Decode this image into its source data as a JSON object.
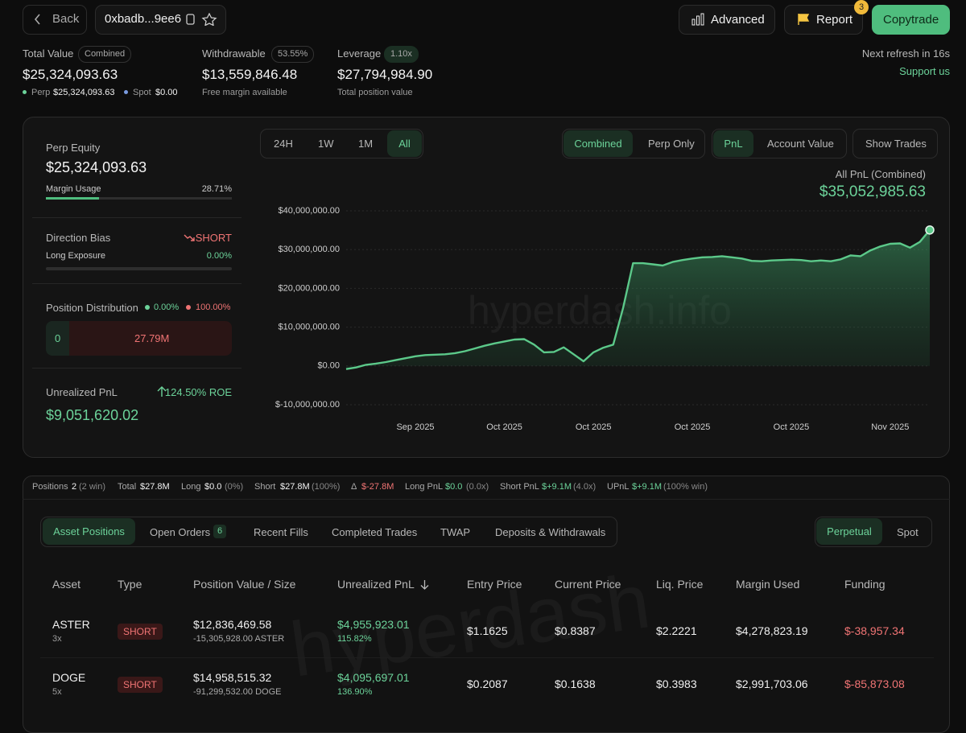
{
  "header": {
    "back": "Back",
    "address": "0xbadb...9ee6",
    "advanced": "Advanced",
    "report": "Report",
    "report_badge": "3",
    "copytrade": "Copytrade"
  },
  "summary": {
    "total_value": {
      "label": "Total Value",
      "badge": "Combined",
      "value": "$25,324,093.63",
      "perp_label": "Perp",
      "perp_value": "$25,324,093.63",
      "spot_label": "Spot",
      "spot_value": "$0.00"
    },
    "withdrawable": {
      "label": "Withdrawable",
      "badge": "53.55%",
      "value": "$13,559,846.48",
      "note": "Free margin available"
    },
    "leverage": {
      "label": "Leverage",
      "badge": "1.10x",
      "value": "$27,794,984.90",
      "note": "Total position value"
    },
    "refresh": "Next refresh in 16s",
    "support": "Support us"
  },
  "overview": {
    "perp_equity_label": "Perp Equity",
    "perp_equity": "$25,324,093.63",
    "margin_usage_label": "Margin Usage",
    "margin_usage": "28.71%",
    "direction_bias_label": "Direction Bias",
    "direction_bias": "SHORT",
    "long_exposure_label": "Long Exposure",
    "long_exposure": "0.00%",
    "distribution_label": "Position Distribution",
    "distribution_long": "0.00%",
    "distribution_short": "100.00%",
    "long_amount": "0",
    "short_amount": "27.79M",
    "upnl_label": "Unrealized PnL",
    "roe": "124.50% ROE",
    "upnl": "$9,051,620.02"
  },
  "chart_controls": {
    "ranges": [
      "24H",
      "1W",
      "1M",
      "All"
    ],
    "scopes": [
      "Combined",
      "Perp Only"
    ],
    "metrics": [
      "PnL",
      "Account Value"
    ],
    "show_trades": "Show Trades"
  },
  "chart_data": {
    "type": "line",
    "title": "All PnL (Combined)",
    "total": "$35,052,985.63",
    "watermark": "hyperdash.info",
    "color": "#5cc98a",
    "grid": true,
    "categories": [
      null,
      null,
      null,
      null,
      null,
      null,
      null,
      "Sep 2025",
      null,
      null,
      null,
      null,
      null,
      null,
      null,
      null,
      "Oct 2025",
      null,
      null,
      null,
      null,
      null,
      null,
      null,
      null,
      "Oct 2025",
      null,
      null,
      null,
      null,
      null,
      null,
      null,
      null,
      null,
      "Oct 2025",
      null,
      null,
      null,
      null,
      null,
      null,
      null,
      null,
      null,
      "Oct 2025",
      null,
      null,
      null,
      null,
      null,
      null,
      null,
      null,
      null,
      "Nov 2025",
      null,
      null,
      null,
      null
    ],
    "values": [
      -800000,
      -400000,
      300000,
      600000,
      1000000,
      1500000,
      2000000,
      2500000,
      2800000,
      2900000,
      3000000,
      3300000,
      3800000,
      4500000,
      5200000,
      5800000,
      6300000,
      6800000,
      6900000,
      5500000,
      3500000,
      3600000,
      4800000,
      3000000,
      1200000,
      3500000,
      4700000,
      5500000,
      15000000,
      26500000,
      26500000,
      26200000,
      25900000,
      26800000,
      27300000,
      27700000,
      28000000,
      28100000,
      28300000,
      28000000,
      27700000,
      27100000,
      27000000,
      27200000,
      27300000,
      27400000,
      27300000,
      27000000,
      27200000,
      27000000,
      27500000,
      28500000,
      28300000,
      29800000,
      30800000,
      31500000,
      31600000,
      30500000,
      32000000,
      35052985.63
    ],
    "ylim": [
      -10000000,
      40000000
    ],
    "yticks": [
      {
        "value": -10000000,
        "label": "$-10,000,000.00"
      },
      {
        "value": 0,
        "label": "$0.00"
      },
      {
        "value": 10000000,
        "label": "$10,000,000.00"
      },
      {
        "value": 20000000,
        "label": "$20,000,000.00"
      },
      {
        "value": 30000000,
        "label": "$30,000,000.00"
      },
      {
        "value": 40000000,
        "label": "$40,000,000.00"
      }
    ]
  },
  "stats_bar": [
    {
      "label": "Positions",
      "value": "2",
      "note": "(2 win)"
    },
    {
      "label": "Total",
      "value": "$27.8M"
    },
    {
      "label": "Long",
      "value": "$0.0",
      "note": "(0%)"
    },
    {
      "label": "Short",
      "value": "$27.8M",
      "note": "(100%)"
    },
    {
      "label": "Δ",
      "value": "$-27.8M"
    },
    {
      "label": "Long PnL",
      "value": "$0.0",
      "note": "(0.0x)"
    },
    {
      "label": "Short PnL",
      "value": "$+9.1M",
      "note": "(4.0x)"
    },
    {
      "label": "UPnL",
      "value": "$+9.1M",
      "note": "(100% win)"
    }
  ],
  "tabs": [
    "Asset Positions",
    "Open Orders",
    "Recent Fills",
    "Completed Trades",
    "TWAP",
    "Deposits & Withdrawals"
  ],
  "open_orders_badge": "6",
  "market_tabs": [
    "Perpetual",
    "Spot"
  ],
  "table": {
    "columns": [
      "Asset",
      "Type",
      "Position Value / Size",
      "Unrealized PnL",
      "Entry Price",
      "Current Price",
      "Liq. Price",
      "Margin Used",
      "Funding"
    ],
    "rows": [
      {
        "asset": "ASTER",
        "leverage": "3x",
        "type": "SHORT",
        "position_value": "$12,836,469.58",
        "size": "-15,305,928.00 ASTER",
        "unrealized_pnl": "$4,955,923.01",
        "roe": "115.82%",
        "entry_price": "$1.1625",
        "current_price": "$0.8387",
        "liq_price": "$2.2221",
        "margin_used": "$4,278,823.19",
        "funding": "$-38,957.34"
      },
      {
        "asset": "DOGE",
        "leverage": "5x",
        "type": "SHORT",
        "position_value": "$14,958,515.32",
        "size": "-91,299,532.00 DOGE",
        "unrealized_pnl": "$4,095,697.01",
        "roe": "136.90%",
        "entry_price": "$0.2087",
        "current_price": "$0.1638",
        "liq_price": "$0.3983",
        "margin_used": "$2,991,703.06",
        "funding": "$-85,873.08"
      }
    ]
  },
  "watermark": "hyperdash"
}
